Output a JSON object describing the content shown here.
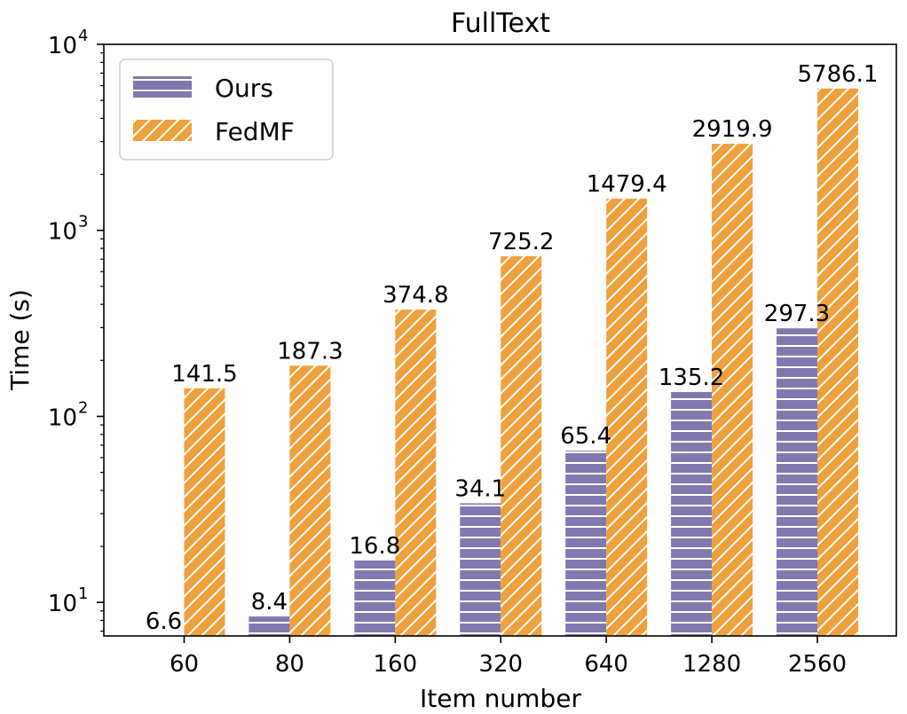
{
  "chart_data": {
    "type": "bar",
    "title": "FullText",
    "xlabel": "Item number",
    "ylabel": "Time (s)",
    "yscale": "log",
    "ylim": [
      6.6,
      10000
    ],
    "yticks": [
      {
        "value": 10,
        "base": "10",
        "exp": "1"
      },
      {
        "value": 100,
        "base": "10",
        "exp": "2"
      },
      {
        "value": 1000,
        "base": "10",
        "exp": "3"
      },
      {
        "value": 10000,
        "base": "10",
        "exp": "4"
      }
    ],
    "categories": [
      "60",
      "80",
      "160",
      "320",
      "640",
      "1280",
      "2560"
    ],
    "series": [
      {
        "name": "Ours",
        "color": "#8278b0",
        "hatch": "horizontal",
        "values": [
          6.6,
          8.4,
          16.8,
          34.1,
          65.4,
          135.2,
          297.3
        ],
        "labels": [
          "6.6",
          "8.4",
          "16.8",
          "34.1",
          "65.4",
          "135.2",
          "297.3"
        ]
      },
      {
        "name": "FedMF",
        "color": "#f0a03c",
        "hatch": "diagonal",
        "values": [
          141.5,
          187.3,
          374.8,
          725.2,
          1479.4,
          2919.9,
          5786.1
        ],
        "labels": [
          "141.5",
          "187.3",
          "374.8",
          "725.2",
          "1479.4",
          "2919.9",
          "5786.1"
        ]
      }
    ],
    "legend": "top-left",
    "grid": false
  }
}
